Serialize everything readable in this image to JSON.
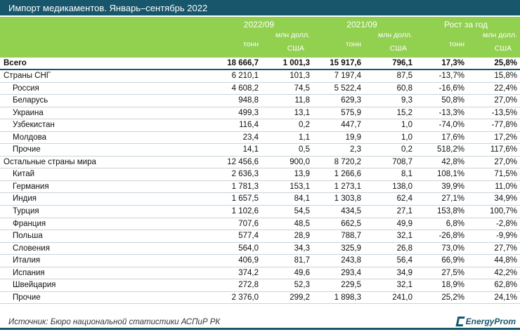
{
  "title": "Импорт медикаментов. Январь–сентябрь 2022",
  "groups": [
    "2022/09",
    "2021/09",
    "Рост за год"
  ],
  "sub": {
    "t": "тонн",
    "u1": "млн долл.",
    "u2": "США"
  },
  "total": {
    "label": "Всего",
    "v": [
      "18 666,7",
      "1 001,3",
      "15 917,6",
      "796,1",
      "17,3%",
      "25,8%"
    ]
  },
  "rows": [
    {
      "label": "Страны СНГ",
      "indent": false,
      "v": [
        "6 210,1",
        "101,3",
        "7 197,4",
        "87,5",
        "-13,7%",
        "15,8%"
      ]
    },
    {
      "label": "Россия",
      "indent": true,
      "v": [
        "4 608,2",
        "74,5",
        "5 522,4",
        "60,8",
        "-16,6%",
        "22,4%"
      ]
    },
    {
      "label": "Беларусь",
      "indent": true,
      "v": [
        "948,8",
        "11,8",
        "629,3",
        "9,3",
        "50,8%",
        "27,0%"
      ]
    },
    {
      "label": "Украина",
      "indent": true,
      "v": [
        "499,3",
        "13,1",
        "575,9",
        "15,2",
        "-13,3%",
        "-13,5%"
      ]
    },
    {
      "label": "Узбекистан",
      "indent": true,
      "v": [
        "116,4",
        "0,2",
        "447,7",
        "1,0",
        "-74,0%",
        "-77,8%"
      ]
    },
    {
      "label": "Молдова",
      "indent": true,
      "v": [
        "23,4",
        "1,1",
        "19,9",
        "1,0",
        "17,6%",
        "17,2%"
      ]
    },
    {
      "label": "Прочие",
      "indent": true,
      "v": [
        "14,1",
        "0,5",
        "2,3",
        "0,2",
        "518,2%",
        "117,6%"
      ]
    },
    {
      "label": "Остальные страны мира",
      "indent": false,
      "v": [
        "12 456,6",
        "900,0",
        "8 720,2",
        "708,7",
        "42,8%",
        "27,0%"
      ]
    },
    {
      "label": "Китай",
      "indent": true,
      "v": [
        "2 636,3",
        "13,9",
        "1 266,6",
        "8,1",
        "108,1%",
        "71,5%"
      ]
    },
    {
      "label": "Германия",
      "indent": true,
      "v": [
        "1 781,3",
        "153,1",
        "1 273,1",
        "138,0",
        "39,9%",
        "11,0%"
      ]
    },
    {
      "label": "Индия",
      "indent": true,
      "v": [
        "1 657,5",
        "84,1",
        "1 303,8",
        "62,4",
        "27,1%",
        "34,9%"
      ]
    },
    {
      "label": "Турция",
      "indent": true,
      "v": [
        "1 102,6",
        "54,5",
        "434,5",
        "27,1",
        "153,8%",
        "100,7%"
      ]
    },
    {
      "label": "Франция",
      "indent": true,
      "v": [
        "707,6",
        "48,5",
        "662,5",
        "49,9",
        "6,8%",
        "-2,8%"
      ]
    },
    {
      "label": "Польша",
      "indent": true,
      "v": [
        "577,4",
        "28,9",
        "788,7",
        "32,1",
        "-26,8%",
        "-9,9%"
      ]
    },
    {
      "label": "Словения",
      "indent": true,
      "v": [
        "564,0",
        "34,3",
        "325,9",
        "26,8",
        "73,0%",
        "27,7%"
      ]
    },
    {
      "label": "Италия",
      "indent": true,
      "v": [
        "406,9",
        "81,7",
        "243,8",
        "56,4",
        "66,9%",
        "44,8%"
      ]
    },
    {
      "label": "Испания",
      "indent": true,
      "v": [
        "374,2",
        "49,6",
        "293,4",
        "34,9",
        "27,5%",
        "42,2%"
      ]
    },
    {
      "label": "Швейцария",
      "indent": true,
      "v": [
        "272,8",
        "52,3",
        "229,5",
        "32,1",
        "18,9%",
        "62,8%"
      ]
    },
    {
      "label": "Прочие",
      "indent": true,
      "v": [
        "2 376,0",
        "299,2",
        "1 898,3",
        "241,0",
        "25,2%",
        "24,1%"
      ]
    }
  ],
  "source": "Источник: Бюро национальной статистики АСПиР РК",
  "logo": "EnergyProm",
  "colors": {
    "title_bg": "#17566b",
    "header_bg": "#92d050"
  }
}
